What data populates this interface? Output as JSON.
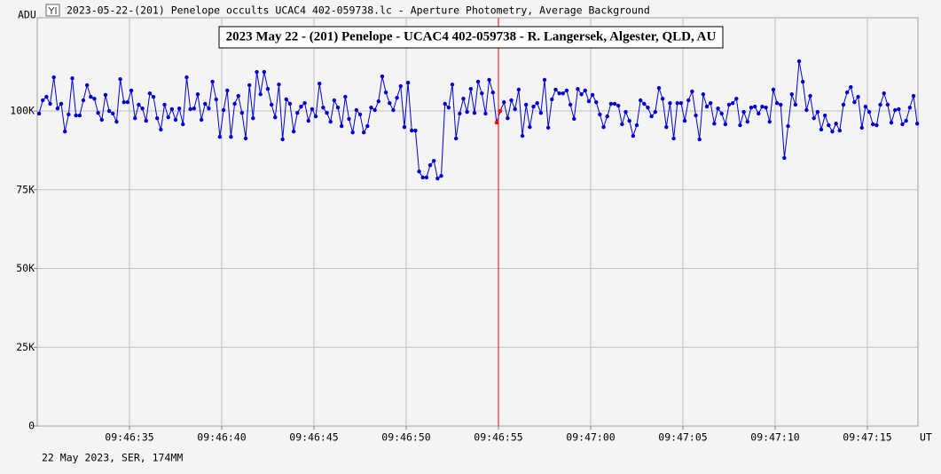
{
  "window_title": "2023-05-22-(201) Penelope occults UCAC4 402-059738.lc - Aperture Photometry, Average Background",
  "footer": "22 May 2023, SER, 174MM",
  "chart_data": {
    "type": "line",
    "title": "2023 May 22 - (201) Penelope - UCAC4 402-059738 - R. Langersek, Algester, QLD, AU",
    "y_label": "ADU",
    "x_label": "UT",
    "color": "#0000d0",
    "grid": true,
    "cursor": 55.0,
    "cursor_color": "#ff0000",
    "xlim": [
      30,
      77.74
    ],
    "ylim": [
      0,
      129600
    ],
    "xticks": [
      {
        "value": 35,
        "label": "09:46:35"
      },
      {
        "value": 40,
        "label": "09:46:40"
      },
      {
        "value": 45,
        "label": "09:46:45"
      },
      {
        "value": 50,
        "label": "09:46:50"
      },
      {
        "value": 55,
        "label": "09:46:55"
      },
      {
        "value": 60,
        "label": "09:47:00"
      },
      {
        "value": 65,
        "label": "09:47:05"
      },
      {
        "value": 70,
        "label": "09:47:10"
      },
      {
        "value": 75,
        "label": "09:47:15"
      }
    ],
    "yticks": [
      0,
      {
        "value": 25000,
        "label": "25K"
      },
      {
        "value": 50000,
        "label": "50K"
      },
      {
        "value": 75000,
        "label": "75K"
      },
      {
        "value": 100000,
        "label": "100K"
      }
    ],
    "x": [
      30.1,
      30.3,
      30.5,
      30.7,
      30.9,
      31.1,
      31.3,
      31.5,
      31.7,
      31.9,
      32.1,
      32.3,
      32.5,
      32.7,
      32.9,
      33.1,
      33.3,
      33.5,
      33.7,
      33.9,
      34.1,
      34.3,
      34.5,
      34.7,
      34.9,
      35.1,
      35.3,
      35.5,
      35.7,
      35.9,
      36.1,
      36.3,
      36.5,
      36.7,
      36.9,
      37.1,
      37.3,
      37.5,
      37.7,
      37.9,
      38.1,
      38.3,
      38.5,
      38.7,
      38.9,
      39.1,
      39.3,
      39.5,
      39.7,
      39.9,
      40.1,
      40.3,
      40.5,
      40.7,
      40.9,
      41.1,
      41.3,
      41.5,
      41.7,
      41.9,
      42.1,
      42.3,
      42.5,
      42.7,
      42.9,
      43.1,
      43.3,
      43.5,
      43.7,
      43.9,
      44.1,
      44.3,
      44.5,
      44.7,
      44.9,
      45.1,
      45.3,
      45.5,
      45.7,
      45.9,
      46.1,
      46.3,
      46.5,
      46.7,
      46.9,
      47.1,
      47.3,
      47.5,
      47.7,
      47.9,
      48.1,
      48.3,
      48.5,
      48.7,
      48.9,
      49.1,
      49.3,
      49.5,
      49.7,
      49.9,
      50.1,
      50.3,
      50.5,
      50.7,
      50.9,
      51.1,
      51.3,
      51.5,
      51.7,
      51.9,
      52.1,
      52.3,
      52.5,
      52.7,
      52.9,
      53.1,
      53.3,
      53.5,
      53.7,
      53.9,
      54.1,
      54.3,
      54.5,
      54.7,
      54.9,
      55.1,
      55.3,
      55.5,
      55.7,
      55.9,
      56.1,
      56.3,
      56.5,
      56.7,
      56.9,
      57.1,
      57.3,
      57.5,
      57.7,
      57.9,
      58.1,
      58.3,
      58.5,
      58.7,
      58.9,
      59.1,
      59.3,
      59.5,
      59.7,
      59.9,
      60.1,
      60.3,
      60.5,
      60.7,
      60.9,
      61.1,
      61.3,
      61.5,
      61.7,
      61.9,
      62.1,
      62.3,
      62.5,
      62.7,
      62.9,
      63.1,
      63.3,
      63.5,
      63.7,
      63.9,
      64.1,
      64.3,
      64.5,
      64.7,
      64.9,
      65.1,
      65.3,
      65.5,
      65.7,
      65.9,
      66.1,
      66.3,
      66.5,
      66.7,
      66.9,
      67.1,
      67.3,
      67.5,
      67.7,
      67.9,
      68.1,
      68.3,
      68.5,
      68.7,
      68.9,
      69.1,
      69.3,
      69.5,
      69.7,
      69.9,
      70.1,
      70.3,
      70.5,
      70.7,
      70.9,
      71.1,
      71.3,
      71.5,
      71.7,
      71.9,
      72.1,
      72.3,
      72.5,
      72.7,
      72.9,
      73.1,
      73.3,
      73.5,
      73.7,
      73.9,
      74.1,
      74.3,
      74.5,
      74.7,
      74.9,
      75.1,
      75.3,
      75.5,
      75.7,
      75.9,
      76.1,
      76.3,
      76.5,
      76.7,
      76.9,
      77.1,
      77.3,
      77.5,
      77.7
    ],
    "values": [
      99200,
      103400,
      104500,
      102300,
      110700,
      100800,
      102300,
      93500,
      98900,
      110400,
      98600,
      98600,
      103400,
      108200,
      104500,
      103900,
      99400,
      97200,
      105100,
      100000,
      99200,
      96600,
      110100,
      102800,
      102800,
      106500,
      97700,
      102000,
      100800,
      96900,
      105600,
      104500,
      97700,
      94100,
      102000,
      98000,
      100600,
      97200,
      100800,
      95800,
      110700,
      100600,
      100800,
      105300,
      97200,
      102300,
      100800,
      109300,
      103700,
      91800,
      100300,
      106500,
      91800,
      102300,
      104800,
      99400,
      91300,
      108200,
      97700,
      112400,
      105300,
      112400,
      107000,
      102000,
      98000,
      108400,
      91000,
      103700,
      102300,
      93500,
      99400,
      101400,
      102500,
      96900,
      100600,
      98300,
      108700,
      101100,
      99400,
      96600,
      103400,
      101100,
      95200,
      104500,
      97500,
      93200,
      100300,
      98900,
      93200,
      95200,
      101100,
      100300,
      103100,
      111000,
      105900,
      102500,
      100300,
      104200,
      107900,
      94900,
      109000,
      93800,
      93800,
      80800,
      78900,
      78900,
      82800,
      84200,
      78600,
      79400,
      102300,
      101100,
      108400,
      91300,
      99200,
      103900,
      99700,
      107000,
      99400,
      109300,
      105600,
      99200,
      109900,
      105900,
      96300,
      100000,
      102800,
      97700,
      103400,
      100600,
      106800,
      92100,
      102000,
      94900,
      101400,
      102500,
      99400,
      109900,
      94700,
      103700,
      106800,
      105600,
      105600,
      106500,
      102000,
      97500,
      107000,
      105300,
      106500,
      103100,
      105100,
      102800,
      98900,
      94900,
      98300,
      102300,
      102300,
      101700,
      95800,
      99700,
      96900,
      92100,
      95500,
      103400,
      102300,
      101100,
      98300,
      99700,
      107300,
      103900,
      94900,
      102500,
      91300,
      102500,
      102500,
      96900,
      103400,
      106200,
      98600,
      91000,
      105300,
      101400,
      102500,
      96000,
      100800,
      99200,
      95800,
      102000,
      102500,
      103900,
      95500,
      99700,
      96600,
      101100,
      101400,
      99200,
      101400,
      101100,
      96600,
      106800,
      102500,
      102000,
      85100,
      95200,
      105300,
      102000,
      115800,
      109300,
      100300,
      104800,
      97700,
      99700,
      94100,
      98600,
      95500,
      93500,
      96000,
      93800,
      102000,
      105900,
      107600,
      102800,
      104500,
      94700,
      101400,
      99700,
      95800,
      95500,
      102000,
      105600,
      102000,
      96300,
      100300,
      100600,
      95800,
      96900,
      101100,
      104800,
      96000
    ]
  }
}
